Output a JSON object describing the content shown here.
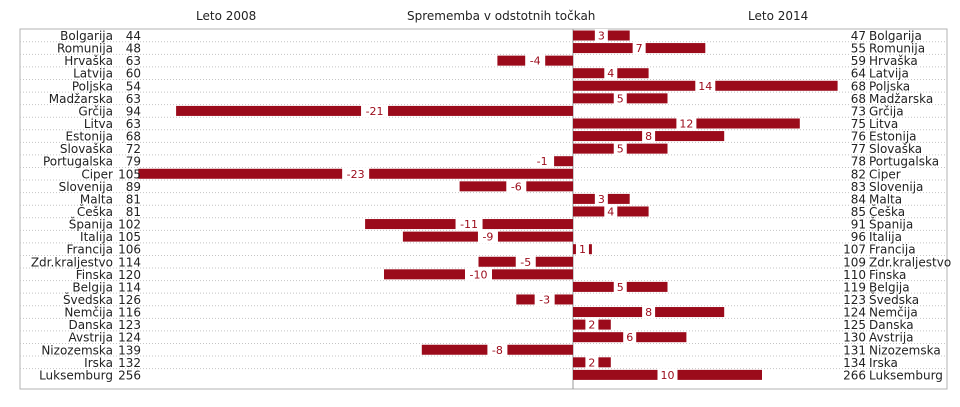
{
  "chart_data": {
    "type": "bar",
    "header_left": "Leto 2008",
    "header_center": "Sprememba v odstotnih točkah",
    "header_right": "Leto 2014",
    "bar_color": "#9b0b1b",
    "xlim": [
      -23,
      14
    ],
    "categories": [
      "Bolgarija",
      "Romunija",
      "Hrvaška",
      "Latvija",
      "Poljska",
      "Madžarska",
      "Grčija",
      "Litva",
      "Estonija",
      "Slovaška",
      "Portugalska",
      "Ciper",
      "Slovenija",
      "Malta",
      "Češka",
      "Španija",
      "Italija",
      "Francija",
      "Zdr.kraljestvo",
      "Finska",
      "Belgija",
      "Švedska",
      "Nemčija",
      "Danska",
      "Avstrija",
      "Nizozemska",
      "Irska",
      "Luksemburg"
    ],
    "values_2008": [
      44,
      48,
      63,
      60,
      54,
      63,
      94,
      63,
      68,
      72,
      79,
      105,
      89,
      81,
      81,
      102,
      105,
      106,
      114,
      120,
      114,
      126,
      116,
      123,
      124,
      139,
      132,
      256
    ],
    "values_2014": [
      47,
      55,
      59,
      64,
      68,
      68,
      73,
      75,
      76,
      77,
      78,
      82,
      83,
      84,
      85,
      91,
      96,
      107,
      109,
      110,
      119,
      123,
      124,
      125,
      130,
      131,
      134,
      266
    ],
    "change": [
      3,
      7,
      -4,
      4,
      14,
      5,
      -21,
      12,
      8,
      5,
      -1,
      -23,
      -6,
      3,
      4,
      -11,
      -9,
      1,
      -5,
      -10,
      5,
      -3,
      8,
      2,
      6,
      -8,
      2,
      10
    ]
  }
}
